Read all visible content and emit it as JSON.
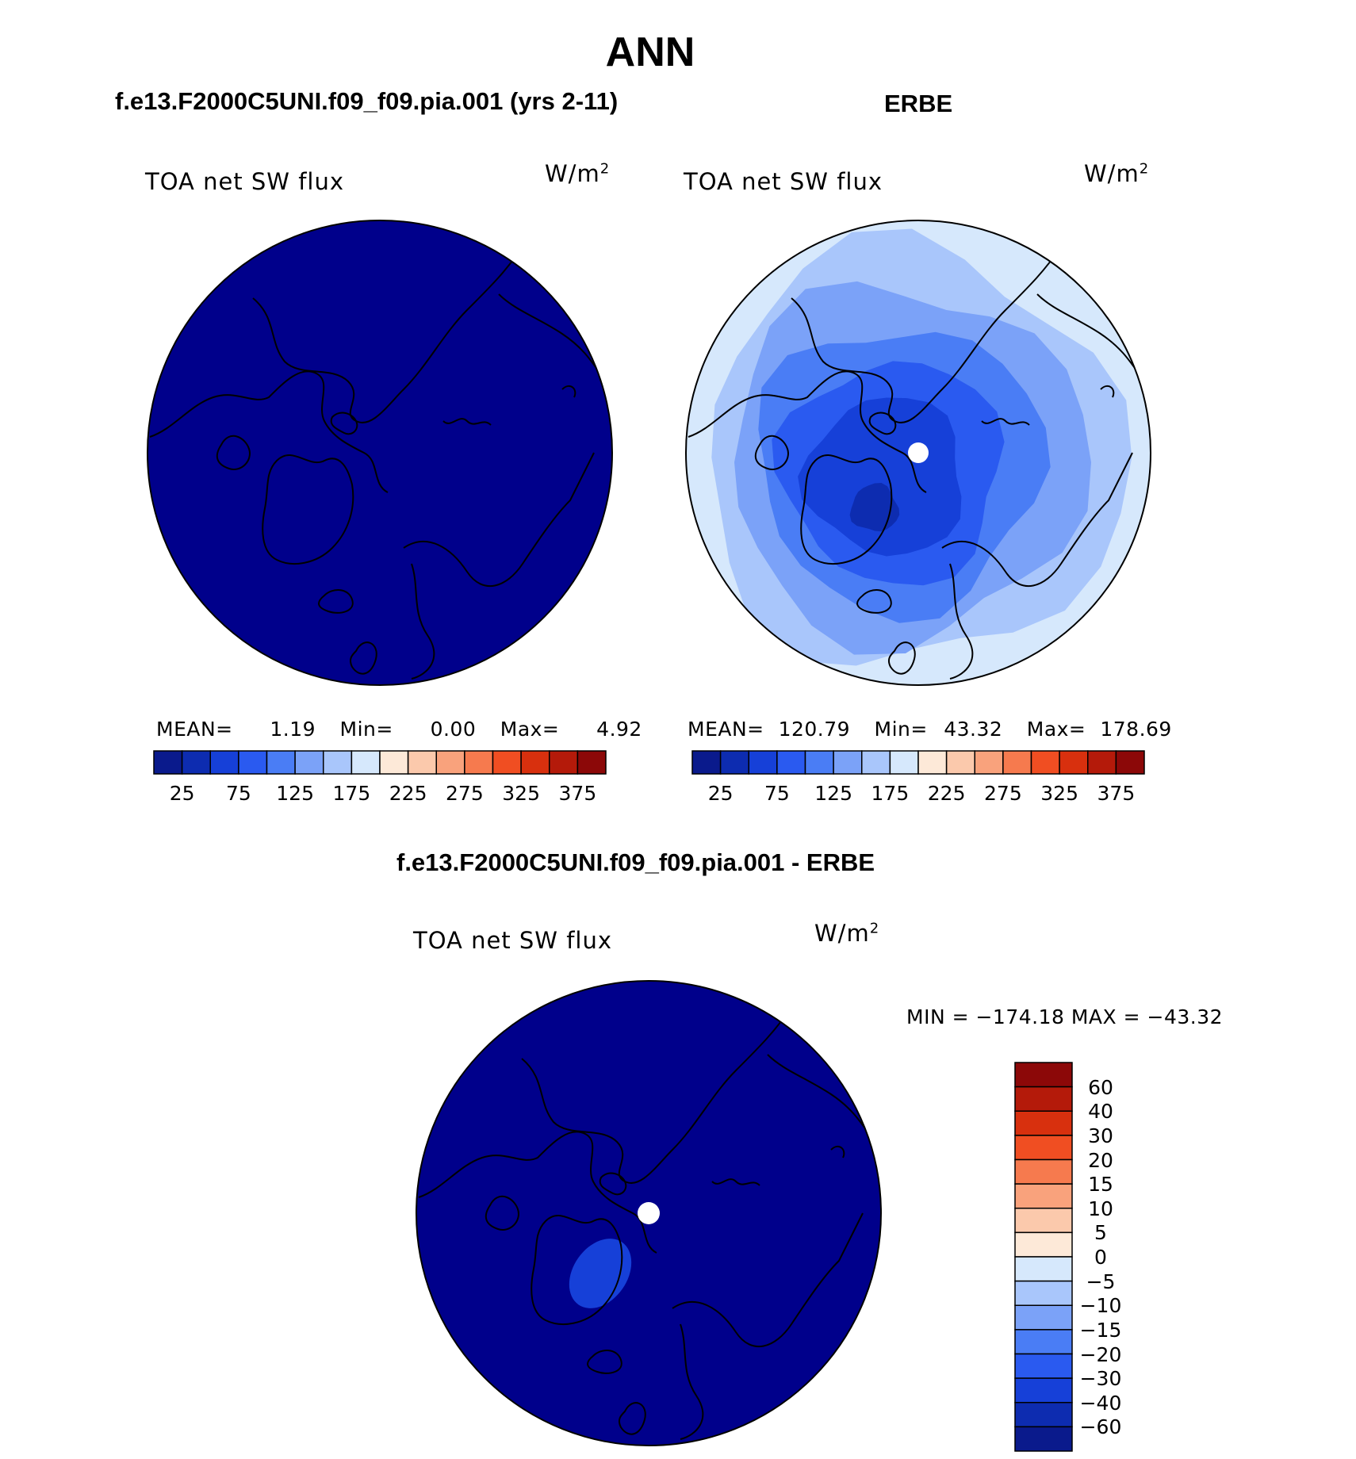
{
  "main_title": "ANN",
  "panels": [
    {
      "header": "f.e13.F2000C5UNI.f09_f09.pia.001 (yrs 2-11)",
      "variable": "TOA net SW flux",
      "units": "W/m",
      "units_sup": "2",
      "stats": {
        "mean_label": "MEAN=",
        "mean": "1.19",
        "min_label": "Min=",
        "min": "0.00",
        "max_label": "Max=",
        "max": "4.92"
      }
    },
    {
      "header": "ERBE",
      "variable": "TOA net SW flux",
      "units": "W/m",
      "units_sup": "2",
      "stats": {
        "mean_label": "MEAN=",
        "mean": "120.79",
        "min_label": "Min=",
        "min": "43.32",
        "max_label": "Max=",
        "max": "178.69"
      }
    },
    {
      "header": "f.e13.F2000C5UNI.f09_f09.pia.001 - ERBE",
      "variable": "TOA net SW flux",
      "units": "W/m",
      "units_sup": "2",
      "minmax": "MIN = −174.18 MAX = −43.32"
    }
  ],
  "abs_colorbar": {
    "labels": [
      "25",
      "75",
      "125",
      "175",
      "225",
      "275",
      "325",
      "375"
    ],
    "colors": [
      "#0a1a8c",
      "#0d2cb0",
      "#1640d8",
      "#2a5af0",
      "#4a7df5",
      "#7ba2f8",
      "#a9c6fb",
      "#d6e8fc",
      "#fde9d8",
      "#fbc9ac",
      "#f9a27c",
      "#f67a4e",
      "#f04e22",
      "#d8300e",
      "#b41a0a",
      "#8c0808"
    ]
  },
  "diff_colorbar": {
    "labels": [
      "60",
      "40",
      "30",
      "20",
      "15",
      "10",
      "5",
      "0",
      "−5",
      "−10",
      "−15",
      "−20",
      "−30",
      "−40",
      "−60"
    ],
    "colors": [
      "#8c0808",
      "#b41a0a",
      "#d8300e",
      "#f04e22",
      "#f67a4e",
      "#f9a27c",
      "#fbc9ac",
      "#fde9d8",
      "#d6e8fc",
      "#a9c6fb",
      "#7ba2f8",
      "#4a7df5",
      "#2a5af0",
      "#1640d8",
      "#0d2cb0",
      "#0a1a8c"
    ]
  },
  "map_colors": {
    "model_fill": "#00008b",
    "erbe_ring_colors": [
      "#d6e8fc",
      "#a9c6fb",
      "#7ba2f8",
      "#4a7df5",
      "#2a5af0",
      "#1640d8",
      "#0d2cb0"
    ],
    "diff_fill": "#00008b",
    "diff_anomaly": "#1640d8",
    "pole_mask": "#ffffff"
  }
}
